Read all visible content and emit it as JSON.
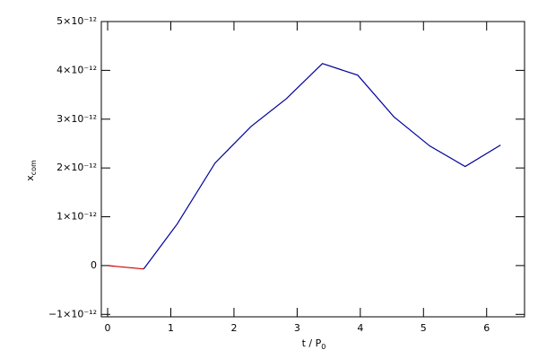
{
  "chart_data": {
    "type": "line",
    "xlabel": {
      "main": "t / P",
      "sub": "0"
    },
    "ylabel": {
      "main": "x",
      "sub": "com"
    },
    "xlim": [
      -0.1,
      6.6
    ],
    "xticks": [
      0,
      1,
      2,
      3,
      4,
      5,
      6
    ],
    "ylim": [
      -1.05e-12,
      5e-12
    ],
    "yticks": [
      {
        "value": -1e-12,
        "label": "−1×10⁻¹²"
      },
      0,
      {
        "value": 1e-12,
        "label": "1×10⁻¹²"
      },
      {
        "value": 2e-12,
        "label": "2×10⁻¹²"
      },
      {
        "value": 3e-12,
        "label": "3×10⁻¹²"
      },
      {
        "value": 4e-12,
        "label": "4×10⁻¹²"
      },
      {
        "value": 5e-12,
        "label": "5×10⁻¹²"
      }
    ],
    "series": [
      {
        "color": "#cc0000",
        "x": [
          0,
          0.57
        ],
        "values": [
          0,
          -7e-14
        ]
      },
      {
        "color": "#000099",
        "x": [
          0.57,
          1.1,
          1.7,
          2.27,
          2.83,
          3.4,
          3.96,
          4.53,
          5.1,
          5.66,
          6.22
        ],
        "values": [
          -7e-14,
          8.5e-13,
          2.1e-12,
          2.85e-12,
          3.42e-12,
          4.14e-12,
          3.9e-12,
          3.05e-12,
          2.45e-12,
          2.03e-12,
          2.47e-12
        ]
      }
    ]
  }
}
